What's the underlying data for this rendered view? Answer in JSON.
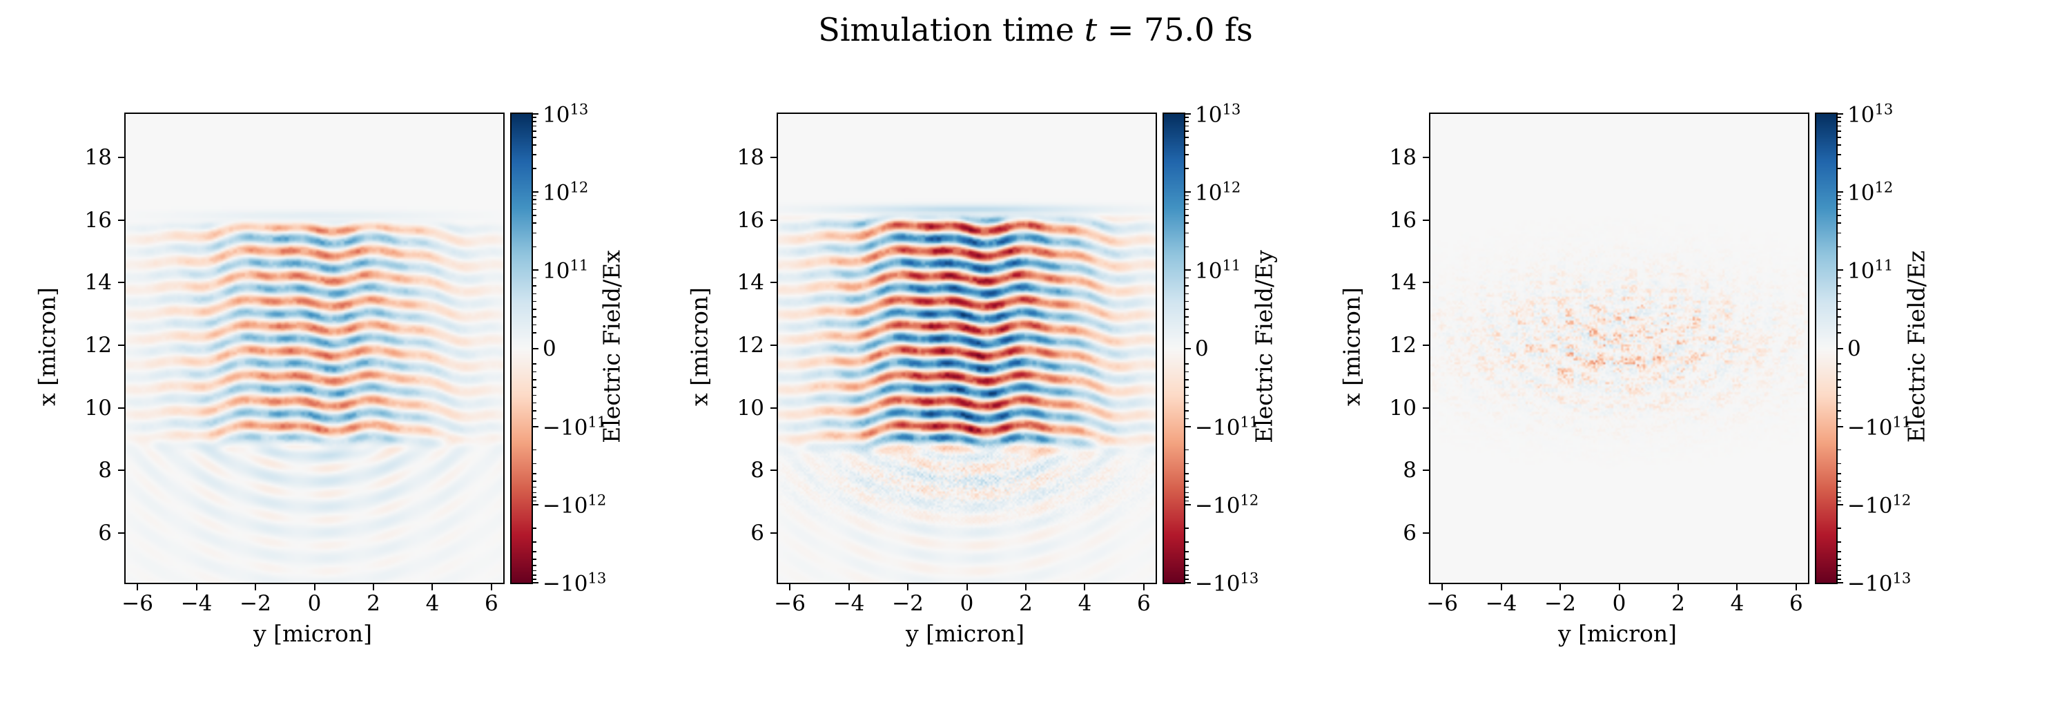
{
  "title": {
    "prefix": "Simulation time ",
    "variable": "t",
    "suffix": " = 75.0 fs"
  },
  "colormap": {
    "name": "RdBu",
    "anchors": [
      "#67001f",
      "#b2182b",
      "#d6604d",
      "#f4a582",
      "#fddbc7",
      "#f7f7f7",
      "#d1e5f0",
      "#92c5de",
      "#4393c3",
      "#2166ac",
      "#053061"
    ]
  },
  "chart_data": {
    "type": "heatmap",
    "title": "Simulation time t = 75.0 fs",
    "time_fs": 75.0,
    "layout": "1x3 subplots, each with right-hand colorbar",
    "axes": {
      "xlabel": "y [micron]",
      "ylabel": "x [micron]",
      "x_range": [
        -6.4,
        6.4
      ],
      "y_range": [
        4.4,
        19.4
      ],
      "x_ticks": [
        -6,
        -4,
        -2,
        0,
        2,
        4,
        6
      ],
      "x_tick_labels": [
        "−6",
        "−4",
        "−2",
        "0",
        "2",
        "4",
        "6"
      ],
      "y_ticks": [
        6,
        8,
        10,
        12,
        14,
        16,
        18
      ],
      "y_tick_labels": [
        "6",
        "8",
        "10",
        "12",
        "14",
        "16",
        "18"
      ]
    },
    "colorbar": {
      "scale": "symlog",
      "linthresh": 100000000000.0,
      "clim": [
        -10000000000000.0,
        10000000000000.0
      ],
      "ticks": [
        {
          "m": "10",
          "e": "13",
          "value": 10000000000000.0
        },
        {
          "m": "10",
          "e": "12",
          "value": 1000000000000.0
        },
        {
          "m": "10",
          "e": "11",
          "value": 100000000000.0
        },
        {
          "m": "0",
          "e": "",
          "value": 0
        },
        {
          "m": "−10",
          "e": "11",
          "value": -100000000000.0
        },
        {
          "m": "−10",
          "e": "12",
          "value": -1000000000000.0
        },
        {
          "m": "−10",
          "e": "13",
          "value": -10000000000000.0
        }
      ]
    },
    "panels": [
      {
        "field": "Ex",
        "colorbar_label": "Electric Field/Ex",
        "description": "Moderate-amplitude horizontal laser wavefronts (lambda ~0.8 um) between x~9 and x~16 um, diverging circular ripples fanning out below x~9 um",
        "render": {
          "stripe_amp": 0.62,
          "beam_w": 4.3,
          "x_on": 8.9,
          "x_off": 15.85,
          "wavelength": 0.8,
          "band_amp": 0.1,
          "arc_amp": 0.2,
          "arc_bias": 0.07,
          "speck_amp": 0,
          "speck_x": 0,
          "speck_w": 1,
          "noise_amp": 0,
          "noise_x": 0,
          "noise_w": 1,
          "pos_scale": 1
        }
      },
      {
        "field": "Ey",
        "colorbar_label": "Electric Field/Ey",
        "description": "Strong saturated horizontal wavefronts (transverse laser field, lambda ~0.8 um) between x~8.7 and x~16.1 um, speckled band near x~7.7 um, faint arcs below",
        "render": {
          "stripe_amp": 0.97,
          "beam_w": 4.4,
          "x_on": 8.75,
          "x_off": 16.05,
          "wavelength": 0.8,
          "band_amp": 0.26,
          "arc_amp": 0.22,
          "arc_bias": 0.03,
          "speck_amp": 0.22,
          "speck_x": 7.7,
          "speck_w": 0.95,
          "noise_amp": 0,
          "noise_x": 0,
          "noise_w": 1,
          "pos_scale": 1
        }
      },
      {
        "field": "Ez",
        "colorbar_label": "Electric Field/Ez",
        "description": "Near-zero field with faint, mostly negative (red) speckle streaks clustered between x~10 and x~14 um",
        "render": {
          "stripe_amp": 0,
          "beam_w": 4.4,
          "x_on": 0,
          "x_off": 0,
          "wavelength": 0.8,
          "band_amp": 0,
          "arc_amp": 0,
          "arc_bias": 0,
          "speck_amp": 0,
          "speck_x": 0,
          "speck_w": 1,
          "noise_amp": 0.34,
          "noise_x": 12.1,
          "noise_w": 1.9,
          "pos_scale": 0.45
        }
      }
    ]
  }
}
